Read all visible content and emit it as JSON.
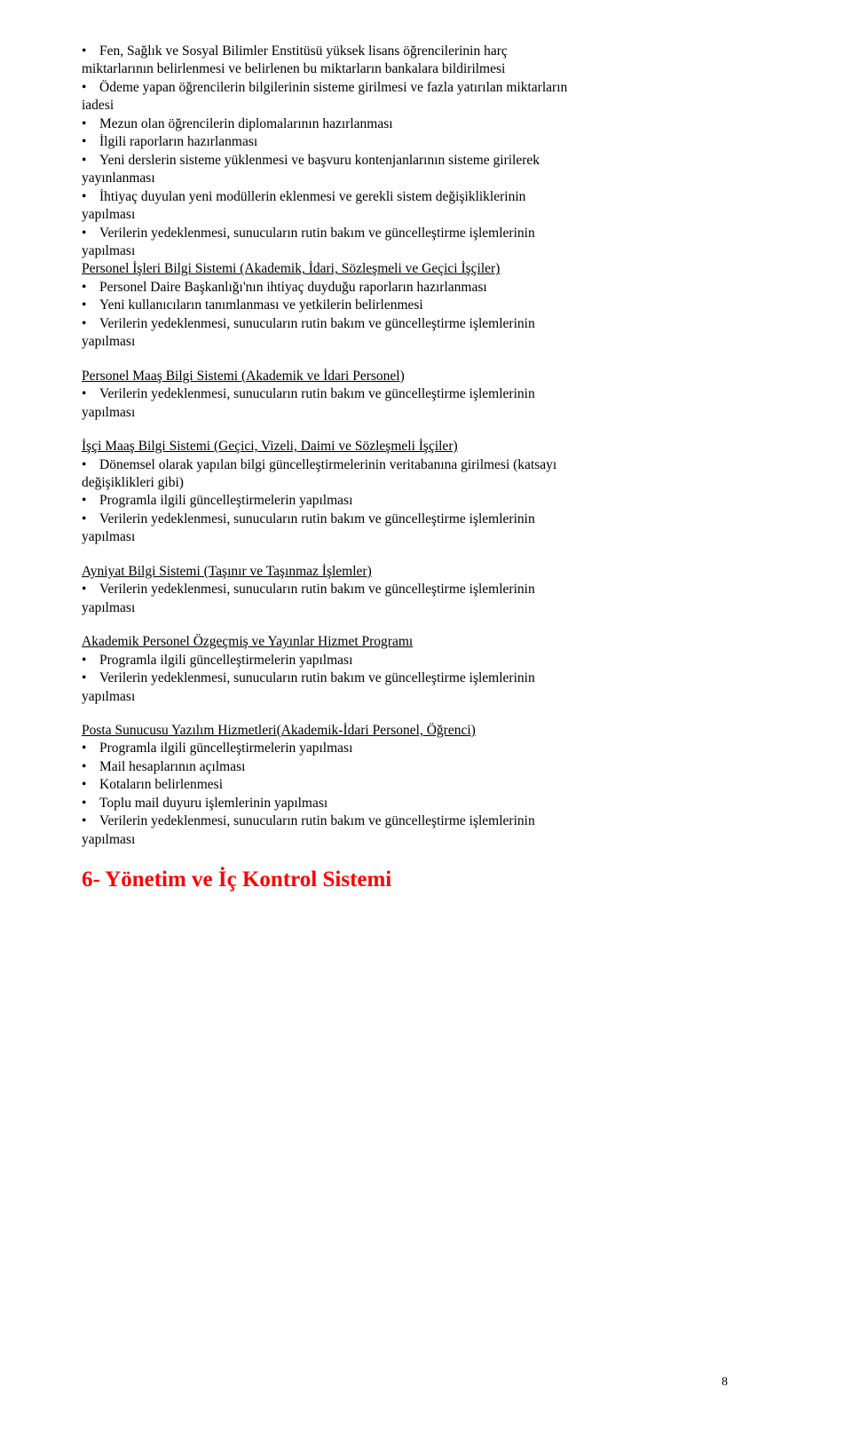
{
  "blocks": [
    {
      "type": "bullet",
      "text": "Fen, Sağlık ve Sosyal Bilimler Enstitüsü yüksek lisans öğrencilerinin harç"
    },
    {
      "type": "plain",
      "text": "miktarlarının belirlenmesi ve belirlenen bu miktarların bankalara bildirilmesi"
    },
    {
      "type": "bullet",
      "text": "Ödeme yapan öğrencilerin bilgilerinin sisteme girilmesi ve fazla yatırılan miktarların"
    },
    {
      "type": "plain",
      "text": "iadesi"
    },
    {
      "type": "bullet",
      "text": "Mezun olan öğrencilerin diplomalarının hazırlanması"
    },
    {
      "type": "bullet",
      "text": "İlgili raporların hazırlanması"
    },
    {
      "type": "bullet",
      "text": "Yeni derslerin sisteme yüklenmesi ve başvuru kontenjanlarının sisteme girilerek"
    },
    {
      "type": "plain",
      "text": "yayınlanması"
    },
    {
      "type": "bullet",
      "text": "İhtiyaç duyulan yeni modüllerin eklenmesi ve gerekli sistem değişikliklerinin"
    },
    {
      "type": "plain",
      "text": "yapılması"
    },
    {
      "type": "bullet",
      "text": "Verilerin yedeklenmesi, sunucuların rutin bakım ve güncelleştirme işlemlerinin"
    },
    {
      "type": "plain",
      "text": "yapılması"
    },
    {
      "type": "uline",
      "text": "Personel İşleri Bilgi Sistemi (Akademik, İdari, Sözleşmeli ve Geçici İşçiler)"
    },
    {
      "type": "bullet",
      "text": "Personel Daire Başkanlığı'nın ihtiyaç duyduğu raporların hazırlanması"
    },
    {
      "type": "bullet",
      "text": "Yeni kullanıcıların tanımlanması ve yetkilerin belirlenmesi"
    },
    {
      "type": "bullet",
      "text": "Verilerin yedeklenmesi, sunucuların rutin bakım ve güncelleştirme işlemlerinin"
    },
    {
      "type": "plain",
      "text": "yapılması"
    },
    {
      "type": "gap"
    },
    {
      "type": "uline",
      "text": "Personel Maaş Bilgi Sistemi (Akademik ve İdari Personel)"
    },
    {
      "type": "bullet",
      "text": "Verilerin yedeklenmesi, sunucuların rutin bakım ve güncelleştirme işlemlerinin"
    },
    {
      "type": "plain",
      "text": "yapılması"
    },
    {
      "type": "gap"
    },
    {
      "type": "uline",
      "text": "İşçi Maaş Bilgi Sistemi (Geçici, Vizeli, Daimi ve Sözleşmeli İşçiler)"
    },
    {
      "type": "bullet",
      "text": "Dönemsel olarak yapılan bilgi güncelleştirmelerinin veritabanına girilmesi (katsayı"
    },
    {
      "type": "plain",
      "text": "değişiklikleri gibi)"
    },
    {
      "type": "bullet",
      "text": "Programla ilgili güncelleştirmelerin yapılması"
    },
    {
      "type": "bullet",
      "text": "Verilerin yedeklenmesi, sunucuların rutin bakım ve güncelleştirme işlemlerinin"
    },
    {
      "type": "plain",
      "text": "yapılması"
    },
    {
      "type": "gap"
    },
    {
      "type": "uline",
      "text": "Ayniyat Bilgi Sistemi (Taşınır ve Taşınmaz İşlemler)"
    },
    {
      "type": "bullet",
      "text": "Verilerin yedeklenmesi, sunucuların rutin bakım ve güncelleştirme işlemlerinin"
    },
    {
      "type": "plain",
      "text": "yapılması"
    },
    {
      "type": "gap"
    },
    {
      "type": "uline",
      "text": "Akademik Personel Özgeçmiş ve Yayınlar Hizmet Programı"
    },
    {
      "type": "bullet",
      "text": "Programla ilgili güncelleştirmelerin yapılması"
    },
    {
      "type": "bullet",
      "text": "Verilerin yedeklenmesi, sunucuların rutin bakım ve güncelleştirme işlemlerinin"
    },
    {
      "type": "plain",
      "text": "yapılması"
    },
    {
      "type": "gap"
    },
    {
      "type": "uline",
      "text": "Posta Sunucusu Yazılım Hizmetleri(Akademik-İdari Personel, Öğrenci)"
    },
    {
      "type": "bullet",
      "text": "Programla ilgili güncelleştirmelerin yapılması"
    },
    {
      "type": "bullet",
      "text": "Mail hesaplarının açılması"
    },
    {
      "type": "bullet",
      "text": "Kotaların belirlenmesi"
    },
    {
      "type": "bullet",
      "text": "Toplu mail duyuru işlemlerinin yapılması"
    },
    {
      "type": "bullet",
      "text": "Verilerin yedeklenmesi, sunucuların rutin bakım ve güncelleştirme işlemlerinin"
    },
    {
      "type": "plain",
      "text": "yapılması"
    }
  ],
  "heading": "6- Yönetim ve İç Kontrol Sistemi",
  "page_number": "8",
  "bullet_char": "•"
}
